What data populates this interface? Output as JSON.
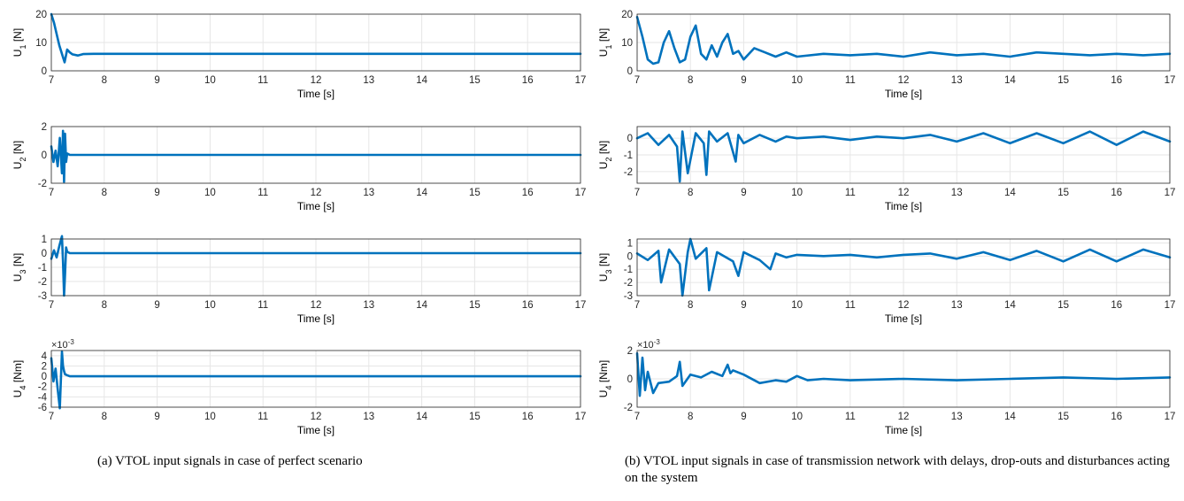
{
  "caption_a": "(a) VTOL input signals in case of perfect scenario",
  "caption_b": "(b) VTOL input signals in case of transmission network with delays, drop-outs and disturbances acting on the system",
  "colors": {
    "line": "#0072BD",
    "grid": "#e6e6e6",
    "axis": "#262626"
  },
  "chart_data": [
    {
      "type": "line",
      "panel": "a-1",
      "xlabel": "Time [s]",
      "ylabel": "U_1 [N]",
      "xlim": [
        7,
        17
      ],
      "ylim": [
        0,
        20
      ],
      "xticks": [
        "7",
        "8",
        "9",
        "10",
        "11",
        "12",
        "13",
        "14",
        "15",
        "16",
        "17"
      ],
      "yticks": [
        "0",
        "10",
        "20"
      ],
      "ytick_values": [
        0,
        10,
        20
      ],
      "exponent": "",
      "x": [
        7.0,
        7.05,
        7.1,
        7.15,
        7.2,
        7.25,
        7.3,
        7.35,
        7.4,
        7.5,
        7.6,
        7.8,
        8.0,
        17.0
      ],
      "y": [
        20.0,
        17.0,
        13.0,
        9.0,
        6.0,
        3.0,
        7.5,
        6.5,
        5.8,
        5.4,
        5.9,
        6.0,
        6.0,
        6.0
      ]
    },
    {
      "type": "line",
      "panel": "a-2",
      "xlabel": "Time [s]",
      "ylabel": "U_2 [N]",
      "xlim": [
        7,
        17
      ],
      "ylim": [
        -2,
        2
      ],
      "xticks": [
        "7",
        "8",
        "9",
        "10",
        "11",
        "12",
        "13",
        "14",
        "15",
        "16",
        "17"
      ],
      "yticks": [
        "-2",
        "0",
        "2"
      ],
      "ytick_values": [
        -2,
        0,
        2
      ],
      "exponent": "",
      "x": [
        7.0,
        7.04,
        7.08,
        7.12,
        7.16,
        7.2,
        7.22,
        7.24,
        7.26,
        7.28,
        7.3,
        7.35,
        17.0
      ],
      "y": [
        0.6,
        -0.5,
        0.3,
        -0.8,
        1.2,
        -1.3,
        1.7,
        -1.9,
        1.5,
        -0.5,
        0.1,
        0.0,
        0.0
      ]
    },
    {
      "type": "line",
      "panel": "a-3",
      "xlabel": "Time [s]",
      "ylabel": "U_3 [N]",
      "xlim": [
        7,
        17
      ],
      "ylim": [
        -3,
        1
      ],
      "xticks": [
        "7",
        "8",
        "9",
        "10",
        "11",
        "12",
        "13",
        "14",
        "15",
        "16",
        "17"
      ],
      "yticks": [
        "-3",
        "-2",
        "-1",
        "0",
        "1"
      ],
      "ytick_values": [
        -3,
        -2,
        -1,
        0,
        1
      ],
      "exponent": "",
      "x": [
        7.0,
        7.05,
        7.1,
        7.15,
        7.2,
        7.22,
        7.24,
        7.26,
        7.28,
        7.3,
        7.35,
        17.0
      ],
      "y": [
        -0.4,
        0.2,
        -0.3,
        0.5,
        1.2,
        -0.6,
        -3.0,
        -1.5,
        0.4,
        0.1,
        0.0,
        0.0
      ]
    },
    {
      "type": "line",
      "panel": "a-4",
      "xlabel": "Time [s]",
      "ylabel": "U_4 [Nm]",
      "xlim": [
        7,
        17
      ],
      "ylim": [
        -6,
        5
      ],
      "xticks": [
        "7",
        "8",
        "9",
        "10",
        "11",
        "12",
        "13",
        "14",
        "15",
        "16",
        "17"
      ],
      "yticks": [
        "-6",
        "-4",
        "-2",
        "0",
        "2",
        "4"
      ],
      "ytick_values": [
        -6,
        -4,
        -2,
        0,
        2,
        4
      ],
      "exponent": "×10^-3",
      "x": [
        7.0,
        7.04,
        7.08,
        7.12,
        7.16,
        7.2,
        7.22,
        7.24,
        7.26,
        7.3,
        7.35,
        17.0
      ],
      "y": [
        3.5,
        -1.0,
        1.5,
        -2.5,
        -6.2,
        4.8,
        2.0,
        1.0,
        0.4,
        0.2,
        0.0,
        0.0
      ]
    },
    {
      "type": "line",
      "panel": "b-1",
      "xlabel": "Time [s]",
      "ylabel": "U_1 [N]",
      "xlim": [
        7,
        17
      ],
      "ylim": [
        0,
        20
      ],
      "xticks": [
        "7",
        "8",
        "9",
        "10",
        "11",
        "12",
        "13",
        "14",
        "15",
        "16",
        "17"
      ],
      "yticks": [
        "0",
        "10",
        "20"
      ],
      "ytick_values": [
        0,
        10,
        20
      ],
      "exponent": "",
      "x": [
        7.0,
        7.1,
        7.2,
        7.3,
        7.4,
        7.5,
        7.6,
        7.7,
        7.8,
        7.9,
        8.0,
        8.1,
        8.2,
        8.3,
        8.4,
        8.5,
        8.6,
        8.7,
        8.8,
        8.9,
        9.0,
        9.2,
        9.4,
        9.6,
        9.8,
        10.0,
        10.5,
        11.0,
        11.5,
        12.0,
        12.5,
        13.0,
        13.5,
        14.0,
        14.5,
        15.0,
        15.5,
        16.0,
        16.5,
        17.0
      ],
      "y": [
        19.0,
        12.0,
        4.0,
        2.5,
        3.0,
        10.0,
        14.0,
        8.0,
        3.0,
        4.0,
        12.0,
        16.0,
        6.0,
        4.0,
        9.0,
        5.0,
        10.0,
        13.0,
        6.0,
        7.0,
        4.0,
        8.0,
        6.5,
        5.0,
        6.5,
        5.0,
        6.0,
        5.5,
        6.0,
        5.0,
        6.5,
        5.5,
        6.0,
        5.0,
        6.5,
        6.0,
        5.5,
        6.0,
        5.5,
        6.0
      ]
    },
    {
      "type": "line",
      "panel": "b-2",
      "xlabel": "Time [s]",
      "ylabel": "U_2 [N]",
      "xlim": [
        7,
        17
      ],
      "ylim": [
        -2.7,
        0.7
      ],
      "xticks": [
        "7",
        "8",
        "9",
        "10",
        "11",
        "12",
        "13",
        "14",
        "15",
        "16",
        "17"
      ],
      "yticks": [
        "-2",
        "-1",
        "0"
      ],
      "ytick_values": [
        -2,
        -1,
        0
      ],
      "exponent": "",
      "x": [
        7.0,
        7.2,
        7.4,
        7.6,
        7.75,
        7.8,
        7.85,
        7.95,
        8.1,
        8.25,
        8.3,
        8.35,
        8.5,
        8.7,
        8.85,
        8.9,
        9.0,
        9.3,
        9.6,
        9.8,
        10.0,
        10.5,
        11.0,
        11.5,
        12.0,
        12.5,
        13.0,
        13.5,
        14.0,
        14.5,
        15.0,
        15.5,
        16.0,
        16.5,
        17.0
      ],
      "y": [
        0.0,
        0.3,
        -0.4,
        0.2,
        -0.5,
        -2.6,
        0.4,
        -2.1,
        0.3,
        -0.3,
        -2.2,
        0.4,
        -0.2,
        0.3,
        -1.4,
        0.2,
        -0.3,
        0.2,
        -0.2,
        0.1,
        0.0,
        0.1,
        -0.1,
        0.1,
        0.0,
        0.2,
        -0.2,
        0.3,
        -0.3,
        0.3,
        -0.3,
        0.4,
        -0.4,
        0.4,
        -0.2
      ]
    },
    {
      "type": "line",
      "panel": "b-3",
      "xlabel": "Time [s]",
      "ylabel": "U_3 [N]",
      "xlim": [
        7,
        17
      ],
      "ylim": [
        -3,
        1.3
      ],
      "xticks": [
        "7",
        "8",
        "9",
        "10",
        "11",
        "12",
        "13",
        "14",
        "15",
        "16",
        "17"
      ],
      "yticks": [
        "-3",
        "-2",
        "-1",
        "0",
        "1"
      ],
      "ytick_values": [
        -3,
        -2,
        -1,
        0,
        1
      ],
      "exponent": "",
      "x": [
        7.0,
        7.2,
        7.4,
        7.45,
        7.6,
        7.8,
        7.85,
        7.95,
        8.0,
        8.1,
        8.3,
        8.35,
        8.5,
        8.8,
        8.9,
        9.0,
        9.3,
        9.5,
        9.6,
        9.8,
        10.0,
        10.5,
        11.0,
        11.5,
        12.0,
        12.5,
        13.0,
        13.5,
        14.0,
        14.5,
        15.0,
        15.5,
        16.0,
        16.5,
        17.0
      ],
      "y": [
        0.2,
        -0.3,
        0.4,
        -2.0,
        0.5,
        -0.6,
        -3.0,
        0.3,
        1.3,
        -0.2,
        0.6,
        -2.6,
        0.3,
        -0.4,
        -1.5,
        0.3,
        -0.3,
        -1.0,
        0.2,
        -0.1,
        0.1,
        0.0,
        0.1,
        -0.1,
        0.1,
        0.2,
        -0.2,
        0.3,
        -0.3,
        0.4,
        -0.4,
        0.5,
        -0.4,
        0.5,
        -0.1
      ]
    },
    {
      "type": "line",
      "panel": "b-4",
      "xlabel": "Time [s]",
      "ylabel": "U_4 [Nm]",
      "xlim": [
        7,
        17
      ],
      "ylim": [
        -2,
        2
      ],
      "xticks": [
        "7",
        "8",
        "9",
        "10",
        "11",
        "12",
        "13",
        "14",
        "15",
        "16",
        "17"
      ],
      "yticks": [
        "-2",
        "0",
        "2"
      ],
      "ytick_values": [
        -2,
        0,
        2
      ],
      "exponent": "×10^-3",
      "x": [
        7.0,
        7.05,
        7.1,
        7.15,
        7.2,
        7.3,
        7.4,
        7.6,
        7.75,
        7.8,
        7.85,
        8.0,
        8.2,
        8.4,
        8.6,
        8.7,
        8.75,
        8.8,
        9.0,
        9.3,
        9.6,
        9.8,
        10.0,
        10.2,
        10.5,
        11.0,
        12.0,
        13.0,
        14.0,
        15.0,
        16.0,
        17.0
      ],
      "y": [
        1.8,
        -1.2,
        1.5,
        -0.8,
        0.5,
        -1.0,
        -0.3,
        -0.2,
        0.2,
        1.2,
        -0.5,
        0.3,
        0.1,
        0.5,
        0.2,
        1.0,
        0.4,
        0.6,
        0.3,
        -0.3,
        -0.1,
        -0.2,
        0.2,
        -0.1,
        0.0,
        -0.1,
        0.0,
        -0.1,
        0.0,
        0.1,
        0.0,
        0.1
      ]
    }
  ]
}
